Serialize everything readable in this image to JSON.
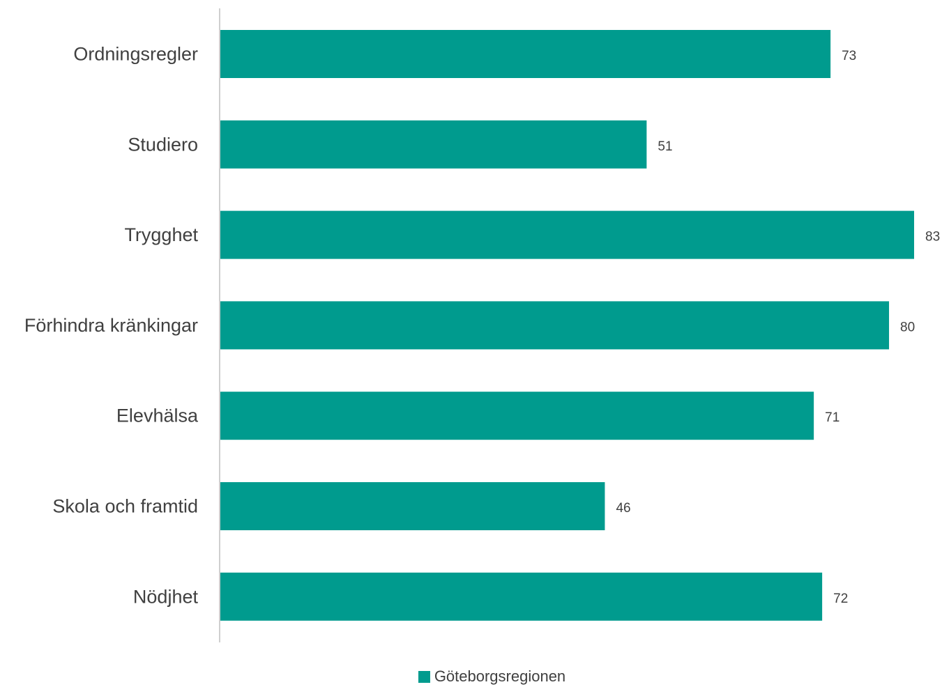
{
  "chart_data": {
    "type": "bar",
    "orientation": "horizontal",
    "categories": [
      "Ordningsregler",
      "Studiero",
      "Trygghet",
      "Förhindra kränkingar",
      "Elevhälsa",
      "Skola och framtid",
      "Nödjhet"
    ],
    "series": [
      {
        "name": "Göteborgsregionen",
        "values": [
          73,
          51,
          83,
          80,
          71,
          46,
          72
        ],
        "color": "#009B8E"
      }
    ],
    "xlim": [
      0,
      83
    ],
    "grid": false,
    "legend_position": "bottom",
    "axis_color": "#BFBFBF"
  }
}
